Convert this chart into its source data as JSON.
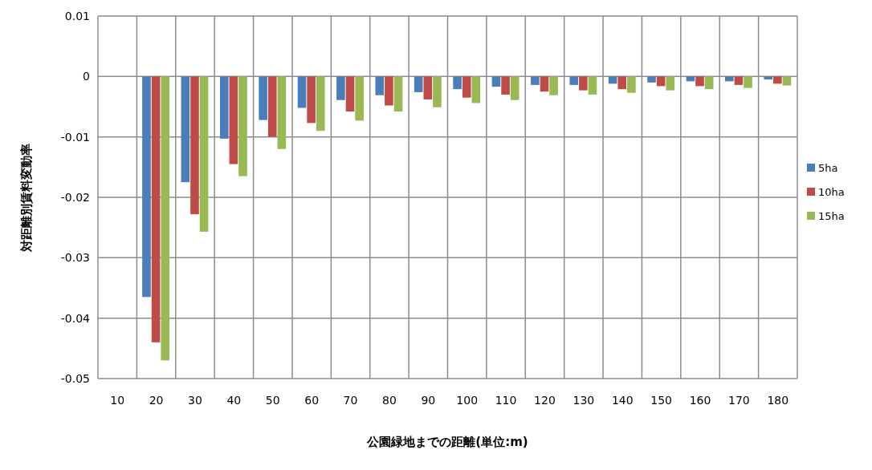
{
  "chart_data": {
    "type": "bar",
    "xlabel": "公園緑地までの距離(単位:m)",
    "ylabel": "対距離別賃料変動率",
    "categories": [
      "10",
      "20",
      "30",
      "40",
      "50",
      "60",
      "70",
      "80",
      "90",
      "100",
      "110",
      "120",
      "130",
      "140",
      "150",
      "160",
      "170",
      "180"
    ],
    "series": [
      {
        "name": "5ha",
        "color": "#4a7ebb",
        "values": [
          0,
          -0.0365,
          -0.0175,
          -0.0103,
          -0.0072,
          -0.0052,
          -0.0039,
          -0.0031,
          -0.0026,
          -0.0021,
          -0.0017,
          -0.0014,
          -0.0014,
          -0.0012,
          -0.001,
          -0.0008,
          -0.0008,
          -0.0005
        ]
      },
      {
        "name": "10ha",
        "color": "#be4b48",
        "values": [
          0,
          -0.044,
          -0.0228,
          -0.0145,
          -0.01,
          -0.0077,
          -0.0058,
          -0.0048,
          -0.0038,
          -0.0035,
          -0.003,
          -0.0025,
          -0.0023,
          -0.0021,
          -0.0016,
          -0.0016,
          -0.0014,
          -0.0012
        ]
      },
      {
        "name": "15ha",
        "color": "#98b954",
        "values": [
          0,
          -0.047,
          -0.0257,
          -0.0165,
          -0.012,
          -0.009,
          -0.0073,
          -0.0058,
          -0.0051,
          -0.0044,
          -0.0039,
          -0.0031,
          -0.003,
          -0.0027,
          -0.0023,
          -0.0021,
          -0.0019,
          -0.0015
        ]
      }
    ],
    "ylim": [
      -0.05,
      0.01
    ],
    "yticks": [
      0.01,
      0,
      -0.01,
      -0.02,
      -0.03,
      -0.04,
      -0.05
    ],
    "grid": true,
    "legend": "right"
  }
}
